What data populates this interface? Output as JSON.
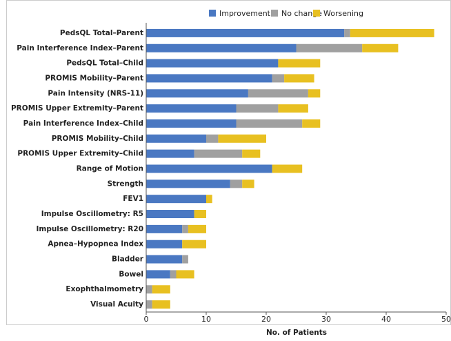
{
  "chart_data": {
    "type": "stacked-bar-horizontal",
    "categories": [
      "PedsQL Total–Parent",
      "Pain Interference Index–Parent",
      "PedsQL Total–Child",
      "PROMIS Mobility–Parent",
      "Pain Intensity (NRS-11)",
      "PROMIS Upper Extremity–Parent",
      "Pain Interference Index–Child",
      "PROMIS Mobility–Child",
      "PROMIS Upper Extremity–Child",
      "Range of Motion",
      "Strength",
      "FEV1",
      "Impulse Oscillometry: R5",
      "Impulse Oscillometry: R20",
      "Apnea–Hypopnea Index",
      "Bladder",
      "Bowel",
      "Exophthalmometry",
      "Visual Acuity"
    ],
    "series": [
      {
        "name": "Improvement",
        "color": "#4a78c2",
        "values": [
          33,
          25,
          22,
          21,
          17,
          15,
          15,
          10,
          8,
          21,
          14,
          10,
          8,
          6,
          6,
          6,
          4,
          0,
          0
        ]
      },
      {
        "name": "No change",
        "color": "#a0a0a0",
        "values": [
          1,
          11,
          0,
          2,
          10,
          7,
          11,
          2,
          8,
          0,
          2,
          0,
          0,
          1,
          0,
          1,
          1,
          1,
          1
        ]
      },
      {
        "name": "Worsening",
        "color": "#e8c021",
        "values": [
          14,
          6,
          7,
          5,
          2,
          5,
          3,
          8,
          3,
          5,
          2,
          1,
          2,
          3,
          4,
          0,
          3,
          3,
          3
        ]
      }
    ],
    "xlabel": "No. of Patients",
    "xlim": [
      0,
      50
    ],
    "xticks": [
      0,
      10,
      20,
      30,
      40,
      50
    ],
    "legend": "top"
  }
}
